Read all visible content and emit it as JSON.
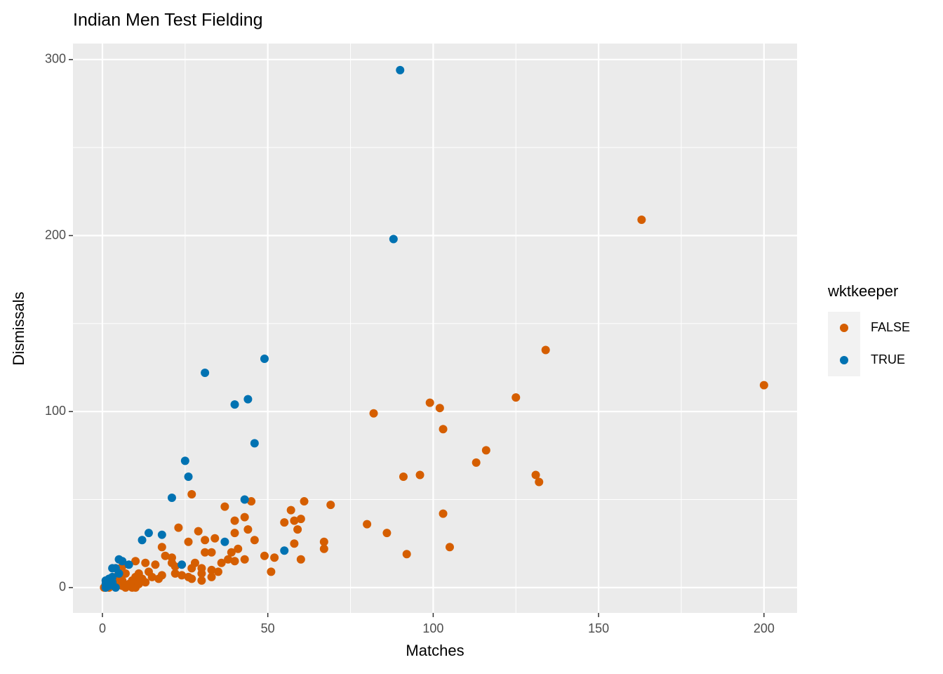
{
  "chart_data": {
    "type": "scatter",
    "title": "Indian Men Test Fielding",
    "x_label": "Matches",
    "y_label": "Dismissals",
    "legend_title": "wktkeeper",
    "legend_position": "right",
    "grid": true,
    "xlim": [
      -8.9,
      210
    ],
    "ylim": [
      -14.4,
      309.1
    ],
    "xticks": [
      0,
      50,
      100,
      150,
      200
    ],
    "yticks": [
      0,
      100,
      200,
      300
    ],
    "x_minor_ticks": [
      25,
      75,
      125,
      175
    ],
    "y_minor_ticks": [
      50,
      150,
      250
    ],
    "series": [
      {
        "name": "FALSE",
        "color": "#D55E00",
        "x": [
          163,
          134,
          200,
          125,
          82,
          99,
          102,
          103,
          116,
          113,
          131,
          132,
          91,
          96,
          27,
          45,
          61,
          69,
          37,
          57,
          103,
          43,
          40,
          58,
          60,
          55,
          80,
          23,
          44,
          59,
          29,
          40,
          86,
          34,
          31,
          46,
          26,
          67,
          67,
          105,
          18,
          58,
          41,
          31,
          33,
          39,
          92,
          19,
          49,
          52,
          21,
          60,
          43,
          38,
          40,
          36,
          28,
          21,
          10,
          13,
          16,
          6,
          4,
          22,
          27,
          30,
          33,
          35,
          51,
          30,
          22,
          24,
          26,
          18,
          33,
          30,
          27,
          17,
          15,
          13,
          11,
          10,
          9,
          8,
          7,
          10,
          9,
          8,
          6,
          5,
          4,
          3,
          2,
          1,
          0.5,
          12,
          14,
          11,
          7,
          5,
          3,
          2,
          1,
          6,
          4
        ],
        "values": [
          209,
          135,
          115,
          108,
          99,
          105,
          102,
          90,
          78,
          71,
          64,
          60,
          63,
          64,
          53,
          49,
          49,
          47,
          46,
          44,
          42,
          40,
          38,
          38,
          39,
          37,
          36,
          34,
          33,
          33,
          32,
          31,
          31,
          28,
          27,
          27,
          26,
          26,
          22,
          23,
          23,
          25,
          22,
          20,
          20,
          20,
          19,
          18,
          18,
          17,
          17,
          16,
          16,
          16,
          15,
          14,
          14,
          14,
          15,
          14,
          13,
          12,
          11,
          12,
          11,
          11,
          10,
          9,
          9,
          8,
          8,
          7,
          6,
          7,
          6,
          4,
          5,
          5,
          6,
          3,
          8,
          6,
          4,
          2,
          0,
          0,
          0,
          1,
          4,
          3,
          6,
          2,
          0,
          1,
          0,
          5,
          9,
          2,
          8,
          7,
          4,
          3,
          0,
          1,
          1
        ]
      },
      {
        "name": "TRUE",
        "color": "#0072B2",
        "x": [
          90,
          88,
          31,
          49,
          40,
          44,
          46,
          25,
          26,
          21,
          43,
          14,
          12,
          18,
          37,
          55,
          24,
          8,
          5,
          6,
          3,
          4,
          5,
          3,
          2,
          1,
          1,
          2,
          3,
          4,
          1,
          2
        ],
        "values": [
          294,
          198,
          122,
          130,
          104,
          107,
          82,
          72,
          63,
          51,
          50,
          31,
          27,
          30,
          26,
          21,
          13,
          13,
          16,
          15,
          11,
          11,
          8,
          6,
          5,
          4,
          2,
          1,
          3,
          0,
          0,
          2
        ]
      }
    ]
  }
}
